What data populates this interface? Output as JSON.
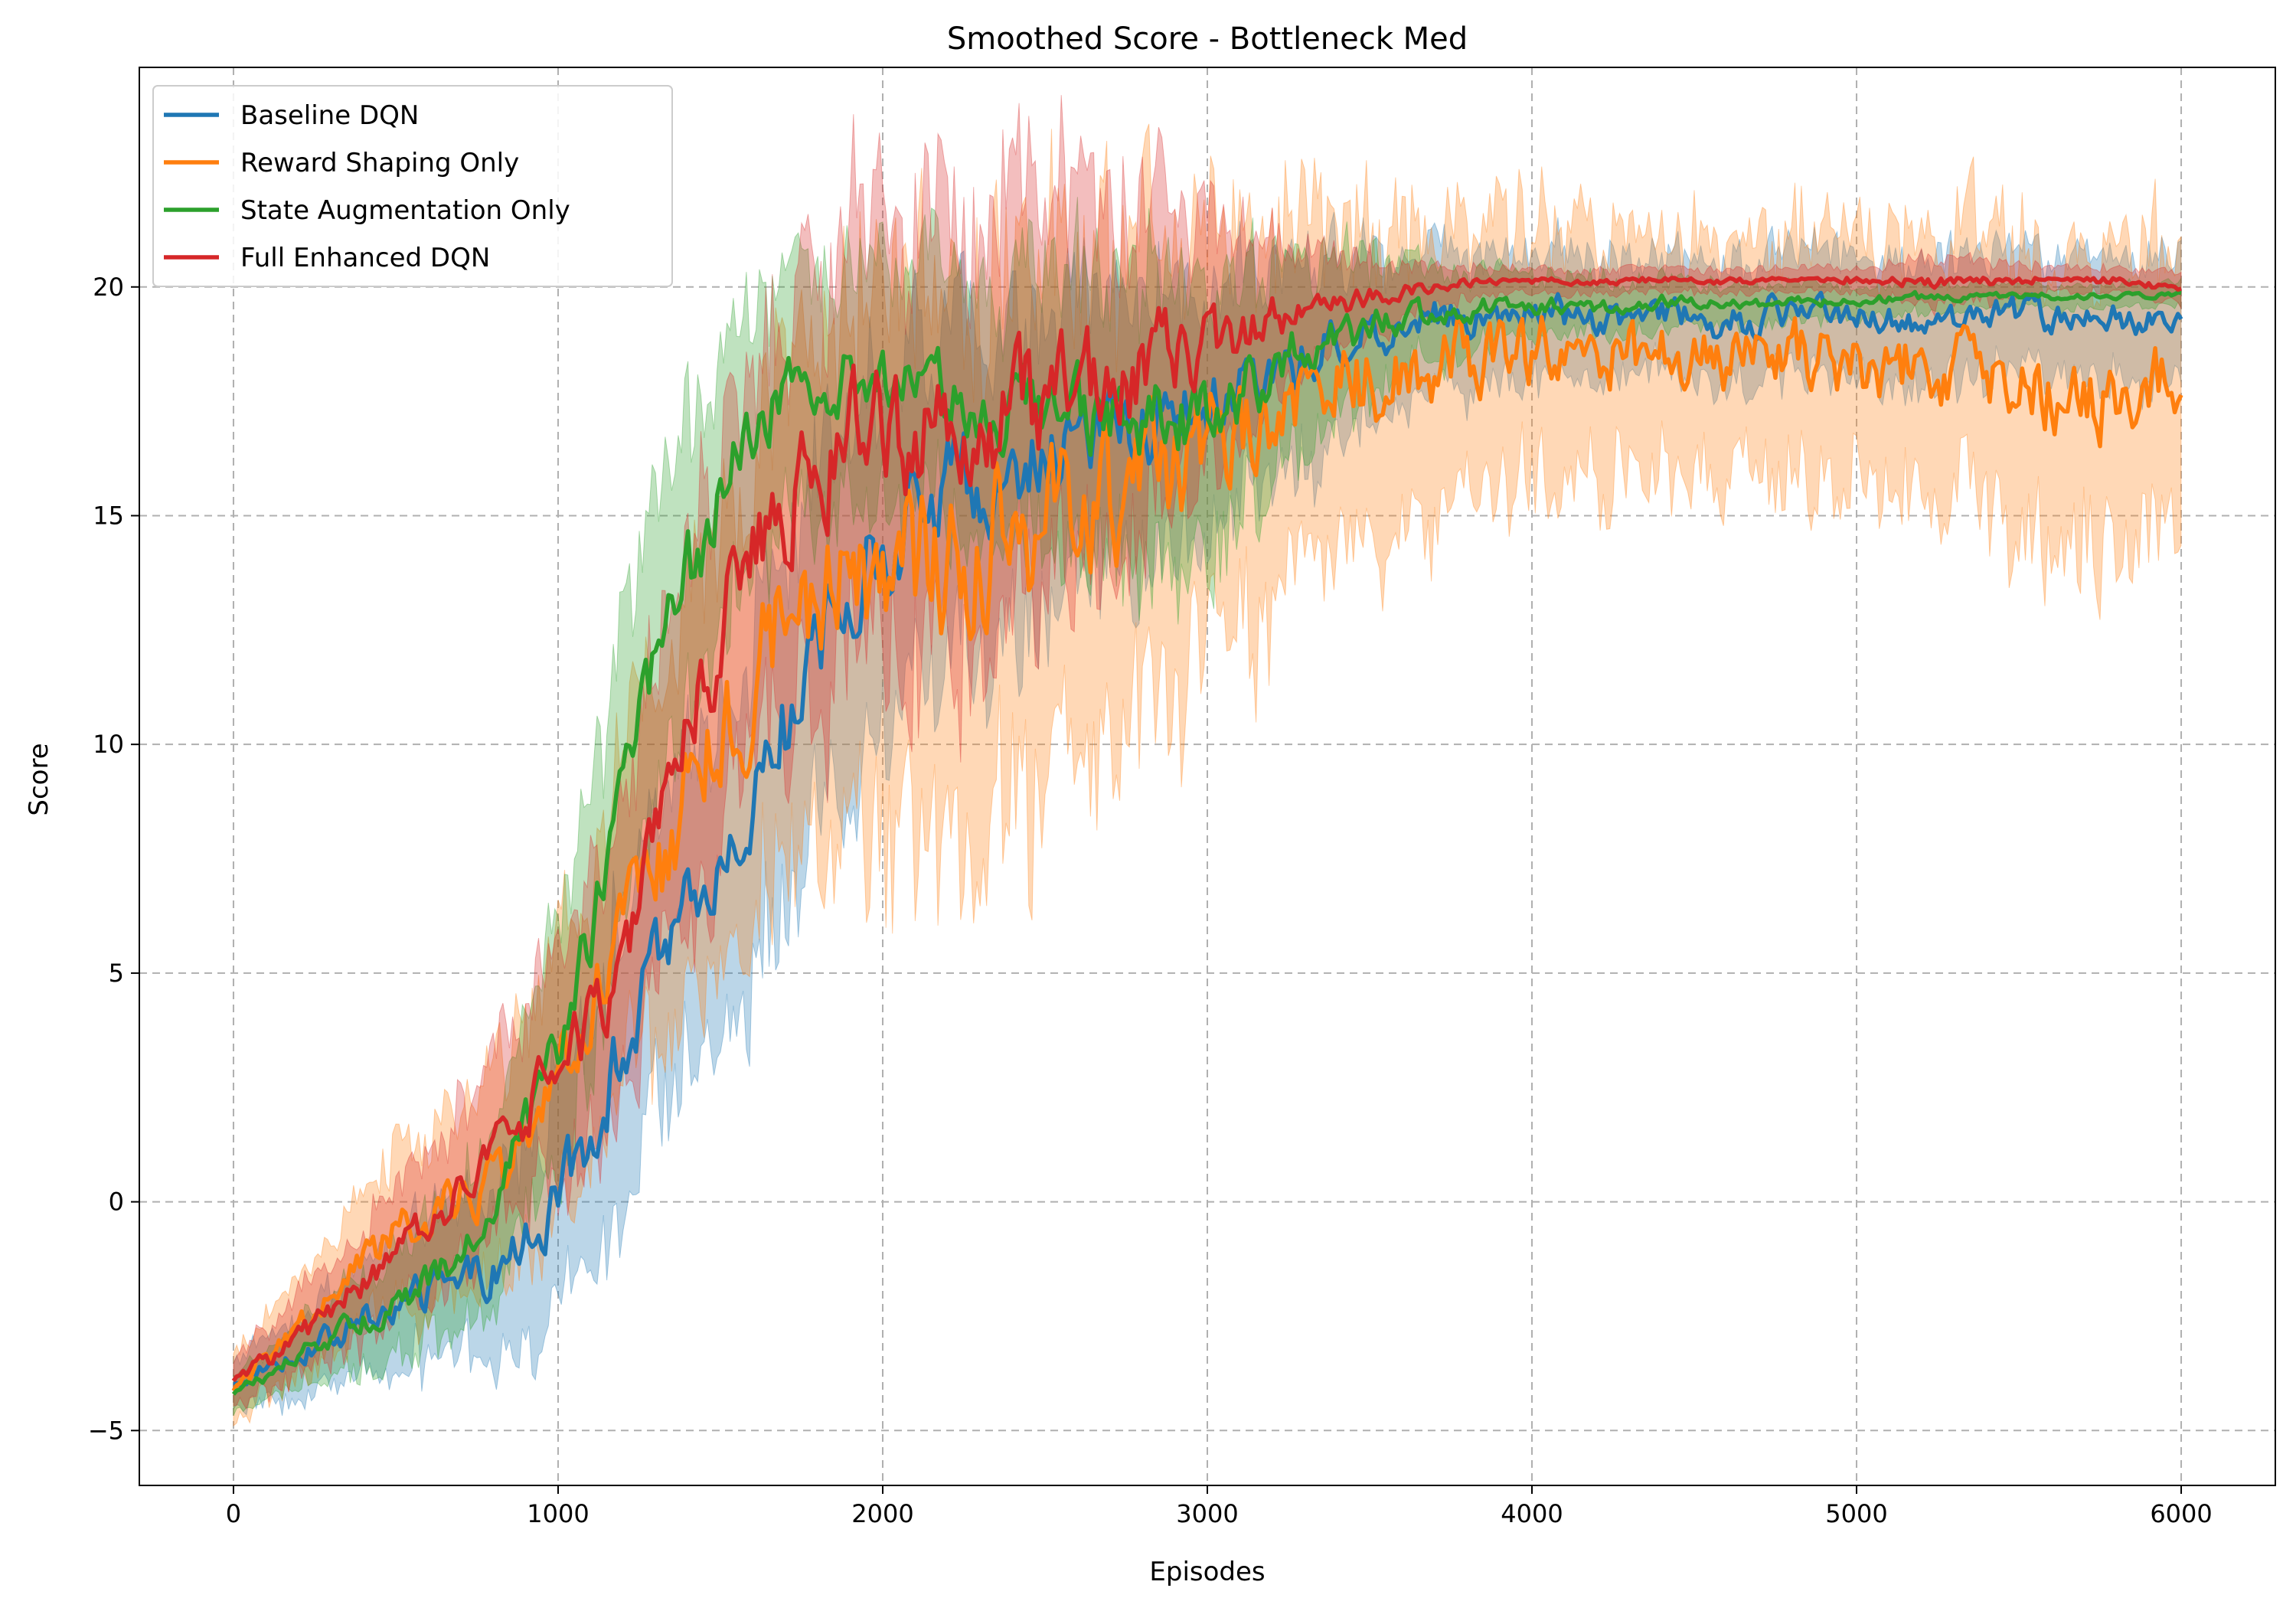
{
  "chart_data": {
    "type": "line",
    "title": "Smoothed Score - Bottleneck Med",
    "xlabel": "Episodes",
    "ylabel": "Score",
    "xlim": [
      -290,
      6290
    ],
    "ylim": [
      -6.2,
      24.8
    ],
    "xticks": [
      0,
      1000,
      2000,
      3000,
      4000,
      5000,
      6000
    ],
    "yticks": [
      -5,
      0,
      5,
      10,
      15,
      20
    ],
    "grid": true,
    "legend_position": "top-left",
    "series": [
      {
        "name": "Baseline DQN",
        "color": "#1f77b4",
        "x": [
          0,
          100,
          200,
          300,
          400,
          500,
          600,
          700,
          800,
          900,
          1000,
          1100,
          1200,
          1300,
          1400,
          1500,
          1600,
          1700,
          1800,
          1900,
          2000,
          2200,
          2400,
          2600,
          2800,
          3000,
          3200,
          3400,
          3600,
          3800,
          4000,
          4200,
          4400,
          4600,
          4800,
          5000,
          5200,
          5400,
          5600,
          5800,
          6000
        ],
        "values": [
          -4.0,
          -3.6,
          -3.3,
          -3.0,
          -2.6,
          -2.3,
          -2.0,
          -1.8,
          -1.5,
          -1.0,
          0.0,
          1.5,
          3.5,
          5.0,
          6.0,
          7.5,
          9.0,
          10.5,
          12.0,
          13.5,
          14.5,
          15.5,
          16.0,
          16.5,
          17.0,
          17.5,
          18.0,
          18.8,
          19.2,
          19.4,
          19.5,
          19.3,
          19.5,
          19.2,
          19.4,
          19.5,
          19.3,
          19.4,
          19.3,
          19.4,
          19.0
        ],
        "band": [
          0.6,
          0.8,
          1.0,
          1.2,
          1.4,
          1.6,
          1.8,
          2.0,
          2.2,
          2.6,
          3.0,
          3.3,
          3.6,
          3.8,
          4.0,
          4.2,
          4.3,
          4.4,
          4.5,
          4.5,
          4.4,
          4.2,
          4.0,
          3.8,
          3.5,
          3.2,
          2.8,
          2.4,
          2.0,
          1.8,
          1.6,
          1.6,
          1.5,
          1.6,
          1.6,
          1.5,
          1.6,
          1.6,
          1.6,
          1.6,
          1.6
        ]
      },
      {
        "name": "Reward Shaping Only",
        "color": "#ff7f0e",
        "x": [
          0,
          100,
          200,
          300,
          400,
          500,
          600,
          700,
          800,
          900,
          1000,
          1100,
          1200,
          1300,
          1400,
          1500,
          1600,
          1700,
          1800,
          1900,
          2000,
          2200,
          2400,
          2600,
          2800,
          3000,
          3200,
          3400,
          3600,
          3800,
          4000,
          4200,
          4400,
          4600,
          4800,
          5000,
          5200,
          5400,
          5600,
          5800,
          6000
        ],
        "values": [
          -4.0,
          -3.4,
          -2.8,
          -2.0,
          -1.4,
          -0.8,
          -0.4,
          0.0,
          0.6,
          1.4,
          2.6,
          4.0,
          5.5,
          7.0,
          9.0,
          10.5,
          11.5,
          12.5,
          13.0,
          13.5,
          13.8,
          14.2,
          14.5,
          15.0,
          15.8,
          16.5,
          17.2,
          17.8,
          18.2,
          18.5,
          18.6,
          18.4,
          18.6,
          18.3,
          18.5,
          18.4,
          18.3,
          18.2,
          17.8,
          17.6,
          18.0
        ],
        "band": [
          0.8,
          1.0,
          1.3,
          1.5,
          1.8,
          2.0,
          2.2,
          2.4,
          2.6,
          3.0,
          3.4,
          3.8,
          4.2,
          4.6,
          5.0,
          5.4,
          5.8,
          6.2,
          6.5,
          6.8,
          7.0,
          7.0,
          6.8,
          6.5,
          6.0,
          5.4,
          4.8,
          4.2,
          3.8,
          3.5,
          3.3,
          3.2,
          3.0,
          3.0,
          3.0,
          3.2,
          3.3,
          3.6,
          3.8,
          3.6,
          3.4
        ]
      },
      {
        "name": "State Augmentation Only",
        "color": "#2ca02c",
        "x": [
          0,
          100,
          200,
          300,
          400,
          500,
          600,
          700,
          800,
          900,
          1000,
          1100,
          1200,
          1300,
          1400,
          1500,
          1600,
          1700,
          1800,
          1900,
          2000,
          2200,
          2400,
          2600,
          2800,
          3000,
          3200,
          3400,
          3600,
          3800,
          4000,
          4200,
          4400,
          4600,
          4800,
          5000,
          5200,
          5400,
          5600,
          5800,
          6000
        ],
        "values": [
          -4.2,
          -3.8,
          -3.4,
          -3.0,
          -2.6,
          -2.2,
          -1.8,
          -1.2,
          0.0,
          1.5,
          3.5,
          6.0,
          9.0,
          11.5,
          13.5,
          15.5,
          16.8,
          17.6,
          18.2,
          18.0,
          17.8,
          17.6,
          17.4,
          17.2,
          17.0,
          17.2,
          18.2,
          19.0,
          19.3,
          19.5,
          19.6,
          19.5,
          19.7,
          19.6,
          19.7,
          19.7,
          19.8,
          19.8,
          19.8,
          19.8,
          19.8
        ],
        "band": [
          0.5,
          0.6,
          0.8,
          1.0,
          1.2,
          1.4,
          1.6,
          1.8,
          2.2,
          2.6,
          3.0,
          3.4,
          3.6,
          3.8,
          3.8,
          3.6,
          3.4,
          3.2,
          3.0,
          3.0,
          3.0,
          3.2,
          3.4,
          3.6,
          3.8,
          3.6,
          2.8,
          2.0,
          1.4,
          1.0,
          0.8,
          0.7,
          0.6,
          0.5,
          0.5,
          0.4,
          0.4,
          0.3,
          0.3,
          0.3,
          0.3
        ]
      },
      {
        "name": "Full Enhanced DQN",
        "color": "#d62728",
        "x": [
          0,
          100,
          200,
          300,
          400,
          500,
          600,
          700,
          800,
          900,
          1000,
          1100,
          1200,
          1300,
          1400,
          1500,
          1600,
          1700,
          1800,
          1900,
          2000,
          2200,
          2400,
          2600,
          2800,
          3000,
          3200,
          3400,
          3600,
          3800,
          4000,
          4200,
          4400,
          4600,
          4800,
          5000,
          5200,
          5400,
          5600,
          5800,
          6000
        ],
        "values": [
          -4.0,
          -3.5,
          -3.0,
          -2.4,
          -1.8,
          -1.2,
          -0.6,
          0.2,
          1.0,
          2.0,
          3.0,
          4.0,
          5.5,
          7.5,
          10.0,
          12.5,
          14.0,
          15.0,
          16.0,
          16.5,
          16.8,
          17.0,
          17.2,
          17.6,
          18.2,
          18.8,
          19.3,
          19.6,
          19.9,
          20.1,
          20.2,
          20.1,
          20.2,
          20.1,
          20.2,
          20.2,
          20.1,
          20.2,
          20.2,
          20.2,
          19.9
        ],
        "band": [
          0.6,
          0.8,
          1.0,
          1.2,
          1.4,
          1.6,
          1.8,
          2.0,
          2.2,
          2.6,
          3.0,
          3.4,
          3.8,
          4.2,
          4.6,
          4.8,
          5.0,
          5.2,
          5.4,
          5.5,
          5.6,
          5.6,
          5.4,
          5.0,
          4.2,
          3.2,
          2.0,
          1.2,
          0.7,
          0.4,
          0.3,
          0.3,
          0.3,
          0.3,
          0.3,
          0.3,
          0.6,
          0.5,
          0.3,
          0.3,
          0.4
        ]
      }
    ]
  }
}
